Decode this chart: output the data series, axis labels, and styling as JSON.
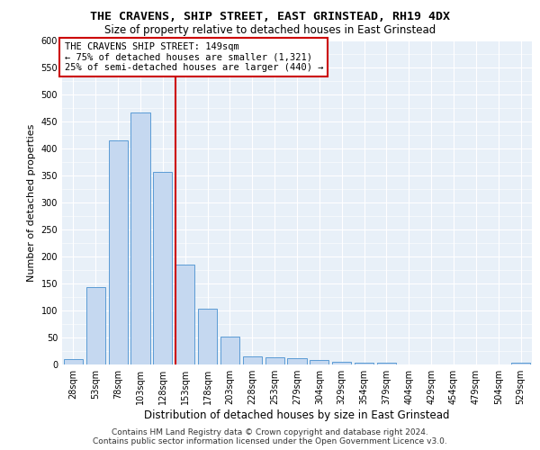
{
  "title": "THE CRAVENS, SHIP STREET, EAST GRINSTEAD, RH19 4DX",
  "subtitle": "Size of property relative to detached houses in East Grinstead",
  "xlabel": "Distribution of detached houses by size in East Grinstead",
  "ylabel": "Number of detached properties",
  "bar_labels": [
    "28sqm",
    "53sqm",
    "78sqm",
    "103sqm",
    "128sqm",
    "153sqm",
    "178sqm",
    "203sqm",
    "228sqm",
    "253sqm",
    "279sqm",
    "304sqm",
    "329sqm",
    "354sqm",
    "379sqm",
    "404sqm",
    "429sqm",
    "454sqm",
    "479sqm",
    "504sqm",
    "529sqm"
  ],
  "bar_values": [
    10,
    143,
    415,
    466,
    356,
    185,
    103,
    52,
    15,
    13,
    11,
    9,
    5,
    4,
    3,
    0,
    0,
    0,
    0,
    0,
    4
  ],
  "bar_color": "#c5d8f0",
  "bar_edgecolor": "#5b9bd5",
  "vline_color": "#cc0000",
  "annotation_line1": "THE CRAVENS SHIP STREET: 149sqm",
  "annotation_line2": "← 75% of detached houses are smaller (1,321)",
  "annotation_line3": "25% of semi-detached houses are larger (440) →",
  "annotation_box_color": "#cc0000",
  "ylim": [
    0,
    600
  ],
  "yticks": [
    0,
    50,
    100,
    150,
    200,
    250,
    300,
    350,
    400,
    450,
    500,
    550,
    600
  ],
  "bg_color": "#e8f0f8",
  "footer_line1": "Contains HM Land Registry data © Crown copyright and database right 2024.",
  "footer_line2": "Contains public sector information licensed under the Open Government Licence v3.0.",
  "title_fontsize": 9.5,
  "subtitle_fontsize": 8.5,
  "xlabel_fontsize": 8.5,
  "ylabel_fontsize": 8,
  "tick_fontsize": 7,
  "annotation_fontsize": 7.5,
  "footer_fontsize": 6.5
}
